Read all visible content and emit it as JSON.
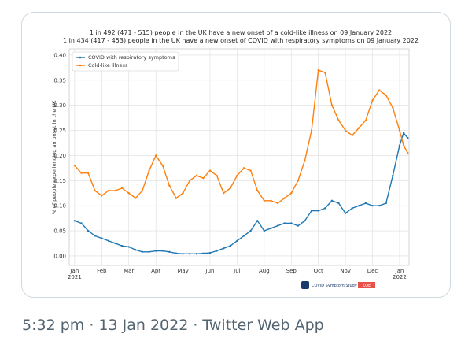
{
  "chart_data": {
    "type": "line",
    "title": "1 in 492 (471 - 515) people in the UK have a new onset of a cold-like illness on 09 January 2022",
    "subtitle": "1 in 434 (417 - 453) people in the UK have a new onset of COVID with respiratory symptoms on 09 January 2022",
    "y_label": "% of people experiencing an onset in the UK",
    "x": [
      0,
      0.25,
      0.5,
      0.75,
      1,
      1.25,
      1.5,
      1.75,
      2,
      2.25,
      2.5,
      2.75,
      3,
      3.25,
      3.5,
      3.75,
      4,
      4.25,
      4.5,
      4.75,
      5,
      5.25,
      5.5,
      5.75,
      6,
      6.25,
      6.5,
      6.75,
      7,
      7.25,
      7.5,
      7.75,
      8,
      8.25,
      8.5,
      8.75,
      9,
      9.25,
      9.5,
      9.75,
      10,
      10.25,
      10.5,
      10.75,
      11,
      11.25,
      11.5,
      11.75,
      12,
      12.15,
      12.3
    ],
    "series": [
      {
        "name": "COVID with respiratory symptoms",
        "color": "#1f77b4",
        "values": [
          0.07,
          0.065,
          0.05,
          0.04,
          0.035,
          0.03,
          0.025,
          0.02,
          0.018,
          0.012,
          0.008,
          0.008,
          0.01,
          0.01,
          0.008,
          0.005,
          0.004,
          0.004,
          0.004,
          0.005,
          0.006,
          0.01,
          0.015,
          0.02,
          0.03,
          0.04,
          0.05,
          0.07,
          0.05,
          0.055,
          0.06,
          0.065,
          0.065,
          0.06,
          0.07,
          0.09,
          0.09,
          0.095,
          0.11,
          0.105,
          0.085,
          0.095,
          0.1,
          0.105,
          0.1,
          0.1,
          0.105,
          0.16,
          0.22,
          0.245,
          0.235
        ]
      },
      {
        "name": "Cold-like illness",
        "color": "#ff7f0e",
        "values": [
          0.18,
          0.165,
          0.165,
          0.13,
          0.12,
          0.13,
          0.13,
          0.135,
          0.125,
          0.115,
          0.13,
          0.17,
          0.2,
          0.18,
          0.14,
          0.115,
          0.125,
          0.15,
          0.16,
          0.155,
          0.17,
          0.16,
          0.125,
          0.135,
          0.16,
          0.175,
          0.17,
          0.13,
          0.11,
          0.11,
          0.105,
          0.115,
          0.125,
          0.15,
          0.19,
          0.25,
          0.37,
          0.365,
          0.3,
          0.27,
          0.25,
          0.24,
          0.255,
          0.27,
          0.31,
          0.33,
          0.32,
          0.295,
          0.25,
          0.22,
          0.205
        ]
      }
    ],
    "xlim": [
      -0.2,
      12.35
    ],
    "xticks": [
      {
        "value": 0,
        "label": "Jan\n2021"
      },
      {
        "value": 1,
        "label": "Feb"
      },
      {
        "value": 2,
        "label": "Mar"
      },
      {
        "value": 3,
        "label": "Apr"
      },
      {
        "value": 4,
        "label": "May"
      },
      {
        "value": 5,
        "label": "Jun"
      },
      {
        "value": 6,
        "label": "Jul"
      },
      {
        "value": 7,
        "label": "Aug"
      },
      {
        "value": 8,
        "label": "Sep"
      },
      {
        "value": 9,
        "label": "Oct"
      },
      {
        "value": 10,
        "label": "Nov"
      },
      {
        "value": 11,
        "label": "Dec"
      },
      {
        "value": 12,
        "label": "Jan\n2022"
      }
    ],
    "ylim": [
      -0.019,
      0.4125
    ],
    "yticks": [
      {
        "value": 0,
        "label": "0.00"
      },
      0.05,
      {
        "value": 0.1,
        "label": "0.10"
      },
      0.15,
      {
        "value": 0.2,
        "label": "0.20"
      },
      0.25,
      {
        "value": 0.3,
        "label": "0.30"
      },
      0.35,
      {
        "value": 0.4,
        "label": "0.40"
      }
    ],
    "grid": true,
    "legend": "upper left",
    "watermark": {
      "text": "COVID Symptom Study",
      "badge": "ZOE"
    }
  },
  "tweet": {
    "timestamp": "5:32 pm · 13 Jan 2022 · Twitter Web App"
  }
}
